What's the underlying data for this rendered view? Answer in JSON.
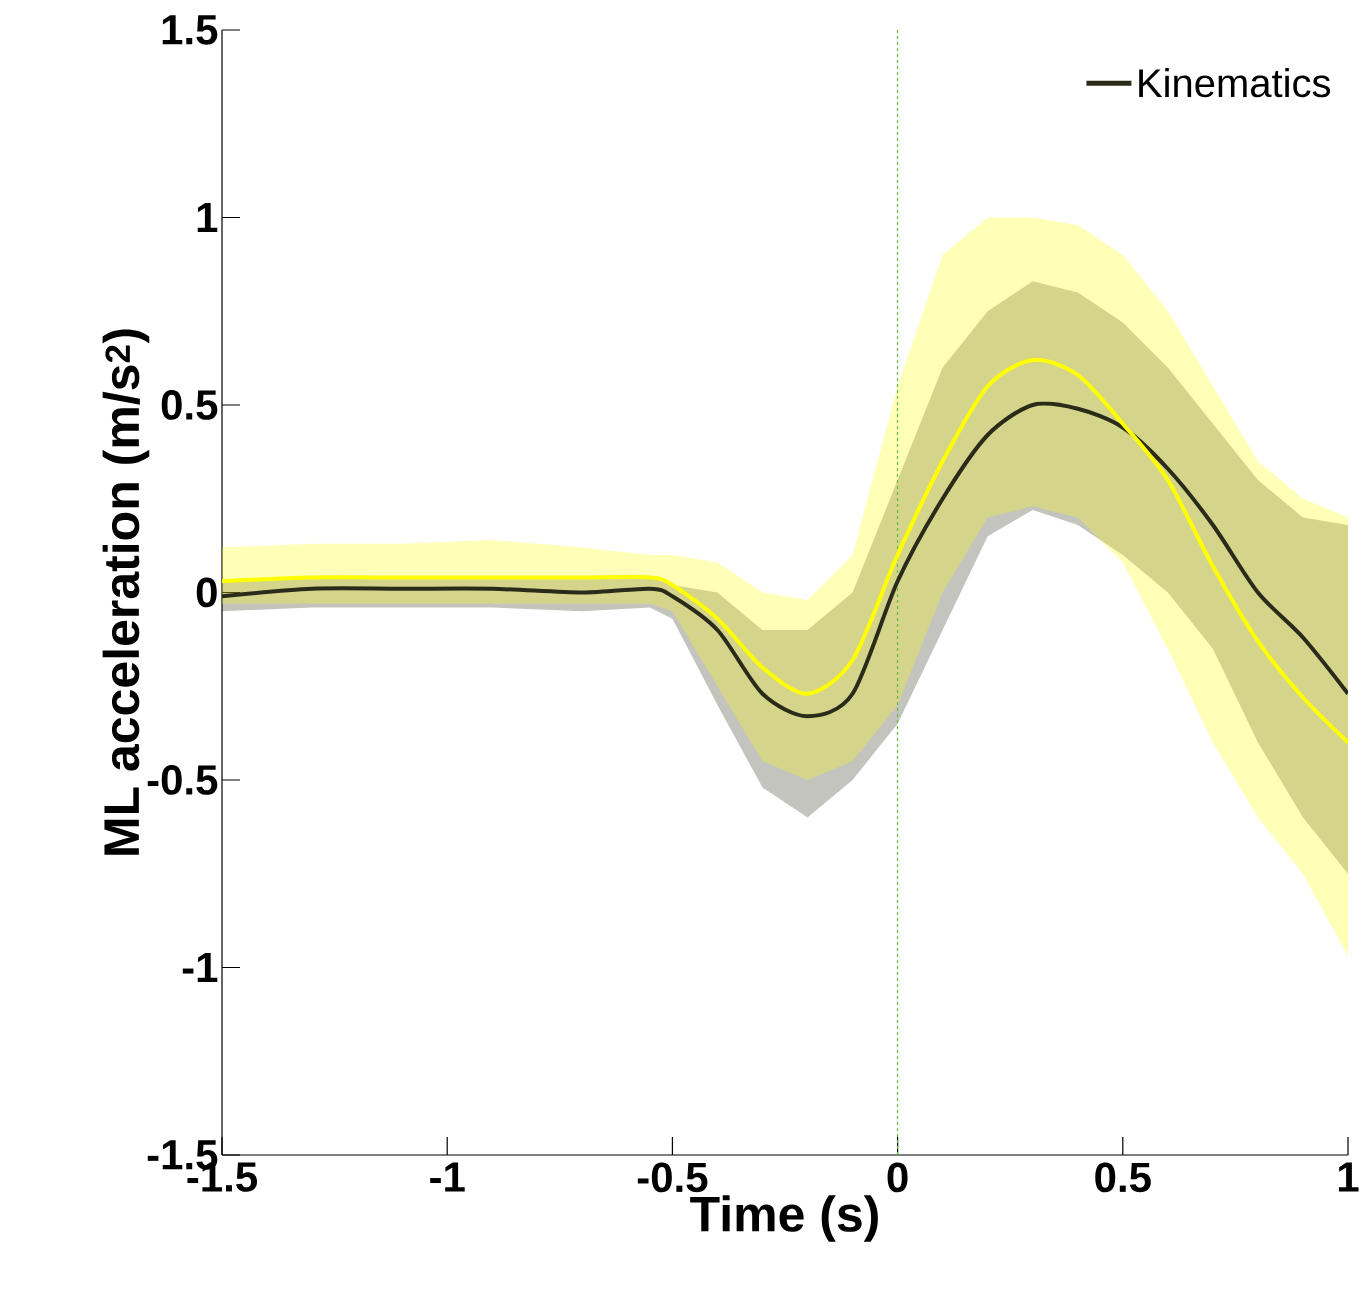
{
  "chart_data": {
    "type": "line",
    "xlabel": "Time (s)",
    "ylabel": "ML acceleration (m/s$^{2}$)",
    "x": [
      -1.5,
      -1.3,
      -1.1,
      -0.9,
      -0.7,
      -0.55,
      -0.5,
      -0.4,
      -0.3,
      -0.2,
      -0.1,
      0,
      0.1,
      0.2,
      0.3,
      0.4,
      0.5,
      0.6,
      0.7,
      0.8,
      0.9,
      1.0
    ],
    "series": [
      {
        "name": "Kinematics",
        "color": "#2b2b1a",
        "values": [
          -0.01,
          0.01,
          0.01,
          0.01,
          0.0,
          0.01,
          -0.01,
          -0.1,
          -0.27,
          -0.33,
          -0.27,
          0.03,
          0.25,
          0.42,
          0.5,
          0.49,
          0.44,
          0.33,
          0.18,
          0.0,
          -0.12,
          -0.27
        ],
        "lower": [
          -0.05,
          -0.04,
          -0.04,
          -0.04,
          -0.05,
          -0.04,
          -0.07,
          -0.3,
          -0.52,
          -0.6,
          -0.5,
          -0.35,
          -0.1,
          0.15,
          0.22,
          0.18,
          0.1,
          0.0,
          -0.15,
          -0.4,
          -0.6,
          -0.75
        ],
        "upper": [
          0.03,
          0.04,
          0.04,
          0.04,
          0.04,
          0.04,
          0.02,
          0.0,
          -0.1,
          -0.1,
          0.0,
          0.3,
          0.6,
          0.75,
          0.83,
          0.8,
          0.72,
          0.6,
          0.45,
          0.3,
          0.2,
          0.18
        ]
      },
      {
        "color": "#ffff00",
        "values": [
          0.03,
          0.04,
          0.04,
          0.04,
          0.04,
          0.04,
          0.02,
          -0.07,
          -0.2,
          -0.27,
          -0.18,
          0.1,
          0.35,
          0.55,
          0.62,
          0.58,
          0.45,
          0.3,
          0.07,
          -0.13,
          -0.28,
          -0.4
        ],
        "lower": [
          -0.03,
          -0.03,
          -0.03,
          -0.03,
          -0.03,
          -0.03,
          -0.05,
          -0.25,
          -0.45,
          -0.5,
          -0.45,
          -0.3,
          0.0,
          0.2,
          0.23,
          0.2,
          0.08,
          -0.15,
          -0.4,
          -0.6,
          -0.75,
          -0.97
        ],
        "upper": [
          0.12,
          0.13,
          0.13,
          0.14,
          0.12,
          0.1,
          0.1,
          0.08,
          0.0,
          -0.02,
          0.1,
          0.55,
          0.9,
          1.0,
          1.0,
          0.98,
          0.9,
          0.75,
          0.55,
          0.35,
          0.25,
          0.2
        ]
      }
    ],
    "xlim": [
      -1.5,
      1
    ],
    "ylim": [
      -1.5,
      1.5
    ],
    "xticks": [
      -1.5,
      -1,
      -0.5,
      0,
      0.5,
      1
    ],
    "yticks": [
      -1.5,
      -1,
      -0.5,
      0,
      0.5,
      1,
      1.5
    ],
    "ref_lines": [
      {
        "axis": "x",
        "value": 0,
        "color": "#66bb44",
        "line_style": "dashed"
      }
    ],
    "legend": "top right"
  }
}
